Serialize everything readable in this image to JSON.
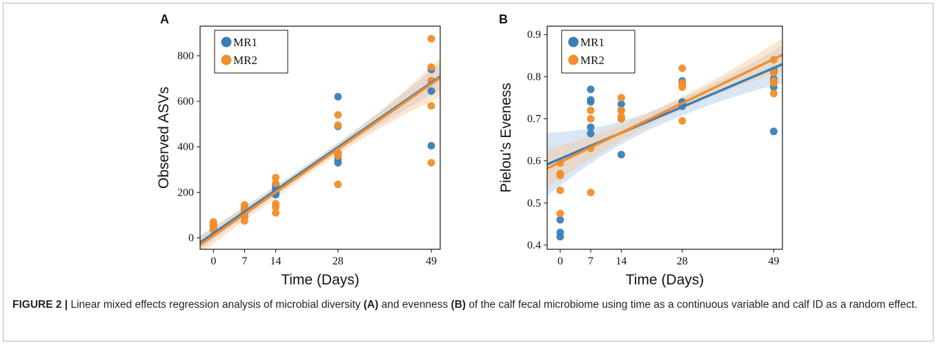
{
  "colors": {
    "MR1": "#3a7fb8",
    "MR2": "#f28e2b",
    "MR1_band": "#a9c8e8",
    "MR2_band": "#f9c79a"
  },
  "caption": {
    "figure_label": "FIGURE 2 |",
    "p1": " Linear mixed effects regression analysis of microbial diversity ",
    "a": "(A)",
    "p2": " and evenness ",
    "b": "(B)",
    "p3": " of the calf fecal microbiome using time as a continuous variable and calf ID as a random effect."
  },
  "chart_data": [
    {
      "type": "scatter",
      "panel_label": "A",
      "xlabel": "Time (Days)",
      "ylabel": "Observed ASVs",
      "xlim": [
        -3,
        51
      ],
      "ylim": [
        -50,
        930
      ],
      "x_ticks": [
        0,
        7,
        14,
        28,
        49
      ],
      "y_ticks": [
        0,
        200,
        400,
        600,
        800
      ],
      "legend": [
        "MR1",
        "MR2"
      ],
      "legend_position": "top-left",
      "series": [
        {
          "name": "MR1",
          "points": [
            [
              0,
              45
            ],
            [
              0,
              55
            ],
            [
              0,
              60
            ],
            [
              7,
              95
            ],
            [
              7,
              110
            ],
            [
              7,
              125
            ],
            [
              7,
              140
            ],
            [
              14,
              190
            ],
            [
              14,
              200
            ],
            [
              14,
              215
            ],
            [
              14,
              230
            ],
            [
              28,
              330
            ],
            [
              28,
              345
            ],
            [
              28,
              360
            ],
            [
              28,
              370
            ],
            [
              28,
              490
            ],
            [
              28,
              620
            ],
            [
              49,
              405
            ],
            [
              49,
              645
            ],
            [
              49,
              690
            ],
            [
              49,
              740
            ]
          ],
          "fit": {
            "intercept": 20,
            "slope": 13.5
          },
          "ci_halfwidth": [
            30,
            18,
            60
          ]
        },
        {
          "name": "MR2",
          "points": [
            [
              0,
              35
            ],
            [
              0,
              45
            ],
            [
              0,
              60
            ],
            [
              0,
              70
            ],
            [
              7,
              75
            ],
            [
              7,
              95
            ],
            [
              7,
              110
            ],
            [
              7,
              130
            ],
            [
              7,
              145
            ],
            [
              14,
              110
            ],
            [
              14,
              135
            ],
            [
              14,
              150
            ],
            [
              14,
              240
            ],
            [
              14,
              265
            ],
            [
              28,
              235
            ],
            [
              28,
              360
            ],
            [
              28,
              375
            ],
            [
              28,
              495
            ],
            [
              28,
              540
            ],
            [
              49,
              330
            ],
            [
              49,
              580
            ],
            [
              49,
              690
            ],
            [
              49,
              750
            ],
            [
              49,
              875
            ]
          ],
          "fit": {
            "intercept": 10,
            "slope": 13.6
          },
          "ci_halfwidth": [
            40,
            22,
            85
          ]
        }
      ]
    },
    {
      "type": "scatter",
      "panel_label": "B",
      "xlabel": "Time (Days)",
      "ylabel": "Pielou’s Eveness",
      "xlim": [
        -3,
        51
      ],
      "ylim": [
        0.39,
        0.92
      ],
      "x_ticks": [
        0,
        7,
        14,
        28,
        49
      ],
      "y_ticks": [
        0.4,
        0.5,
        0.6,
        0.7,
        0.8,
        0.9
      ],
      "legend": [
        "MR1",
        "MR2"
      ],
      "legend_position": "top-left",
      "series": [
        {
          "name": "MR1",
          "points": [
            [
              0,
              0.42
            ],
            [
              0,
              0.43
            ],
            [
              0,
              0.46
            ],
            [
              7,
              0.665
            ],
            [
              7,
              0.68
            ],
            [
              7,
              0.74
            ],
            [
              7,
              0.745
            ],
            [
              7,
              0.77
            ],
            [
              14,
              0.615
            ],
            [
              14,
              0.7
            ],
            [
              14,
              0.72
            ],
            [
              14,
              0.735
            ],
            [
              28,
              0.73
            ],
            [
              28,
              0.735
            ],
            [
              28,
              0.74
            ],
            [
              28,
              0.785
            ],
            [
              28,
              0.79
            ],
            [
              49,
              0.67
            ],
            [
              49,
              0.775
            ],
            [
              49,
              0.79
            ],
            [
              49,
              0.795
            ],
            [
              49,
              0.81
            ],
            [
              49,
              0.815
            ]
          ],
          "fit": {
            "intercept": 0.605,
            "slope": 0.0044
          },
          "ci_halfwidth": [
            0.075,
            0.02,
            0.045
          ]
        },
        {
          "name": "MR2",
          "points": [
            [
              0,
              0.475
            ],
            [
              0,
              0.53
            ],
            [
              0,
              0.565
            ],
            [
              0,
              0.57
            ],
            [
              0,
              0.595
            ],
            [
              7,
              0.525
            ],
            [
              7,
              0.63
            ],
            [
              7,
              0.7
            ],
            [
              7,
              0.72
            ],
            [
              14,
              0.7
            ],
            [
              14,
              0.705
            ],
            [
              14,
              0.72
            ],
            [
              14,
              0.75
            ],
            [
              28,
              0.695
            ],
            [
              28,
              0.775
            ],
            [
              28,
              0.78
            ],
            [
              28,
              0.785
            ],
            [
              28,
              0.82
            ],
            [
              49,
              0.76
            ],
            [
              49,
              0.785
            ],
            [
              49,
              0.79
            ],
            [
              49,
              0.81
            ],
            [
              49,
              0.84
            ]
          ],
          "fit": {
            "intercept": 0.597,
            "slope": 0.005
          },
          "ci_halfwidth": [
            0.045,
            0.015,
            0.04
          ]
        }
      ]
    }
  ]
}
